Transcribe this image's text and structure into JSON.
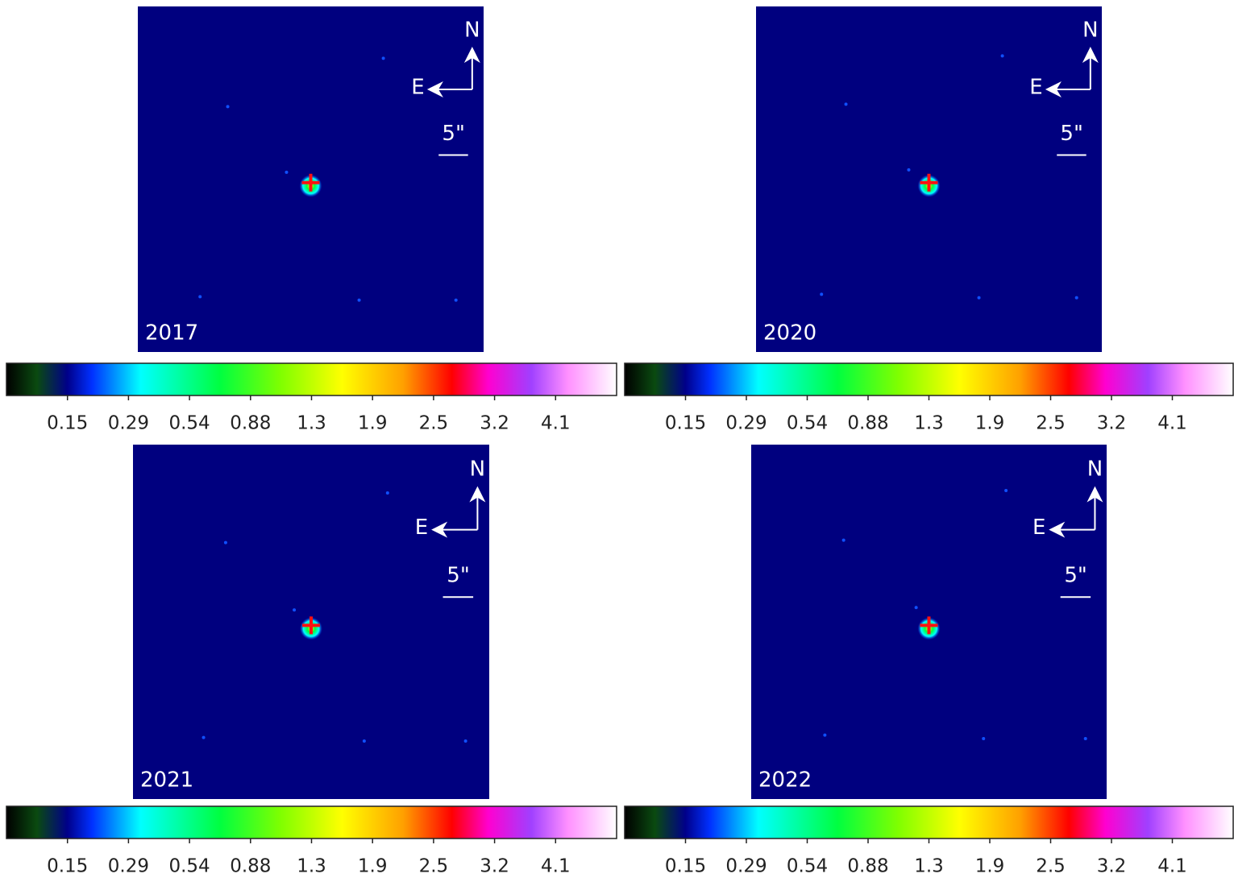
{
  "panels": [
    {
      "year": "2017",
      "north": "N",
      "east": "E",
      "scale": "5\"",
      "colorbar_ticks": [
        0.15,
        0.29,
        0.54,
        0.88,
        1.3,
        1.9,
        2.5,
        3.2,
        4.1
      ]
    },
    {
      "year": "2020",
      "north": "N",
      "east": "E",
      "scale": "5\"",
      "colorbar_ticks": [
        0.15,
        0.29,
        0.54,
        0.88,
        1.3,
        1.9,
        2.5,
        3.2,
        4.1
      ]
    },
    {
      "year": "2021",
      "north": "N",
      "east": "E",
      "scale": "5\"",
      "colorbar_ticks": [
        0.15,
        0.29,
        0.54,
        0.88,
        1.3,
        1.9,
        2.5,
        3.2,
        4.1
      ]
    },
    {
      "year": "2022",
      "north": "N",
      "east": "E",
      "scale": "5\"",
      "colorbar_ticks": [
        0.15,
        0.29,
        0.54,
        0.88,
        1.3,
        1.9,
        2.5,
        3.2,
        4.1
      ]
    }
  ]
}
